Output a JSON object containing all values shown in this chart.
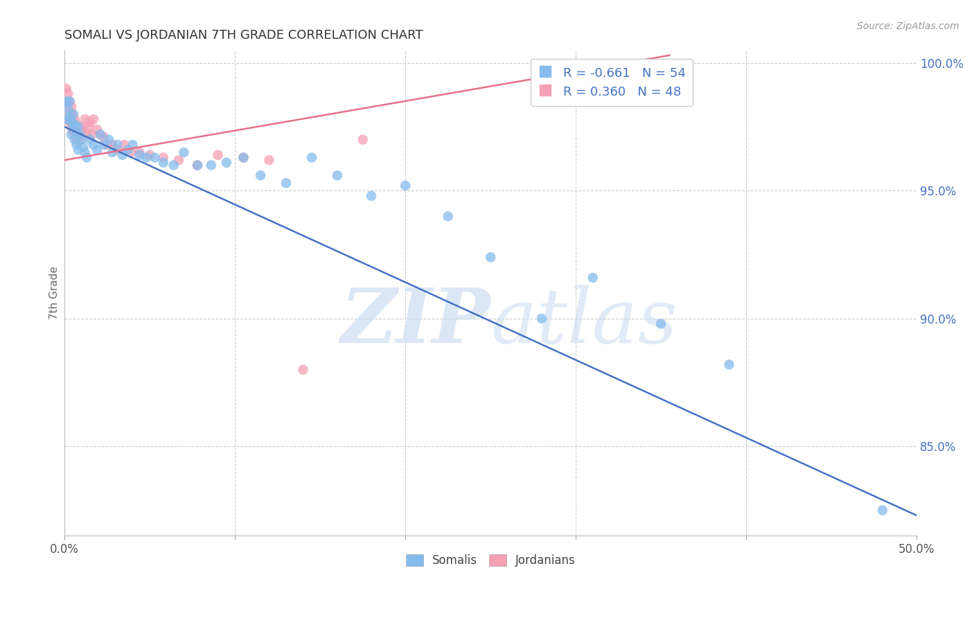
{
  "title": "SOMALI VS JORDANIAN 7TH GRADE CORRELATION CHART",
  "source": "Source: ZipAtlas.com",
  "ylabel": "7th Grade",
  "xlim": [
    0.0,
    0.5
  ],
  "ylim": [
    0.815,
    1.005
  ],
  "xticks": [
    0.0,
    0.1,
    0.2,
    0.3,
    0.4,
    0.5
  ],
  "xticklabels": [
    "0.0%",
    "",
    "",
    "",
    "",
    "50.0%"
  ],
  "yticks_right": [
    0.85,
    0.9,
    0.95,
    1.0
  ],
  "yticklabels_right": [
    "85.0%",
    "90.0%",
    "95.0%",
    "100.0%"
  ],
  "somali_color": "#85BCEC",
  "jordanian_color": "#F4A0B5",
  "somali_line_color": "#4472C4",
  "jordanian_line_color": "#E8708A",
  "legend_r_somali": "R = -0.661",
  "legend_n_somali": "N = 54",
  "legend_r_jordanian": "R = 0.360",
  "legend_n_jordanian": "N = 48",
  "watermark_zip": "ZIP",
  "watermark_atlas": "atlas",
  "watermark_color": "#C8D8F0",
  "grid_color": "#CCCCCC",
  "background_color": "#FFFFFF",
  "somali_x": [
    0.001,
    0.002,
    0.002,
    0.003,
    0.003,
    0.004,
    0.004,
    0.005,
    0.005,
    0.006,
    0.006,
    0.007,
    0.007,
    0.008,
    0.008,
    0.009,
    0.01,
    0.011,
    0.012,
    0.013,
    0.015,
    0.017,
    0.019,
    0.021,
    0.023,
    0.026,
    0.028,
    0.031,
    0.034,
    0.037,
    0.04,
    0.044,
    0.048,
    0.053,
    0.058,
    0.064,
    0.07,
    0.078,
    0.086,
    0.095,
    0.105,
    0.115,
    0.13,
    0.145,
    0.16,
    0.18,
    0.2,
    0.225,
    0.25,
    0.28,
    0.31,
    0.35,
    0.39,
    0.48
  ],
  "somali_y": [
    0.985,
    0.982,
    0.978,
    0.985,
    0.979,
    0.977,
    0.972,
    0.98,
    0.975,
    0.976,
    0.97,
    0.973,
    0.968,
    0.975,
    0.966,
    0.972,
    0.97,
    0.967,
    0.965,
    0.963,
    0.97,
    0.968,
    0.966,
    0.972,
    0.968,
    0.97,
    0.965,
    0.968,
    0.964,
    0.966,
    0.968,
    0.964,
    0.963,
    0.963,
    0.961,
    0.96,
    0.965,
    0.96,
    0.96,
    0.961,
    0.963,
    0.956,
    0.953,
    0.963,
    0.956,
    0.948,
    0.952,
    0.94,
    0.924,
    0.9,
    0.916,
    0.898,
    0.882,
    0.825
  ],
  "jordanian_x": [
    0.001,
    0.001,
    0.002,
    0.002,
    0.003,
    0.003,
    0.003,
    0.004,
    0.004,
    0.004,
    0.005,
    0.005,
    0.005,
    0.006,
    0.006,
    0.007,
    0.007,
    0.007,
    0.008,
    0.008,
    0.009,
    0.009,
    0.01,
    0.011,
    0.012,
    0.013,
    0.014,
    0.015,
    0.016,
    0.017,
    0.019,
    0.021,
    0.023,
    0.025,
    0.028,
    0.031,
    0.035,
    0.039,
    0.044,
    0.05,
    0.058,
    0.067,
    0.078,
    0.09,
    0.105,
    0.12,
    0.14,
    0.175
  ],
  "jordanian_y": [
    0.99,
    0.985,
    0.988,
    0.983,
    0.985,
    0.98,
    0.977,
    0.983,
    0.978,
    0.975,
    0.98,
    0.976,
    0.973,
    0.978,
    0.974,
    0.976,
    0.972,
    0.97,
    0.975,
    0.971,
    0.974,
    0.97,
    0.973,
    0.975,
    0.978,
    0.972,
    0.975,
    0.977,
    0.972,
    0.978,
    0.974,
    0.972,
    0.971,
    0.968,
    0.968,
    0.966,
    0.968,
    0.965,
    0.965,
    0.964,
    0.963,
    0.962,
    0.96,
    0.964,
    0.963,
    0.962,
    0.88,
    0.97
  ],
  "blue_line_x": [
    0.0,
    0.5
  ],
  "blue_line_y": [
    0.975,
    0.823
  ],
  "pink_line_x": [
    0.0,
    0.355
  ],
  "pink_line_y": [
    0.962,
    1.003
  ]
}
